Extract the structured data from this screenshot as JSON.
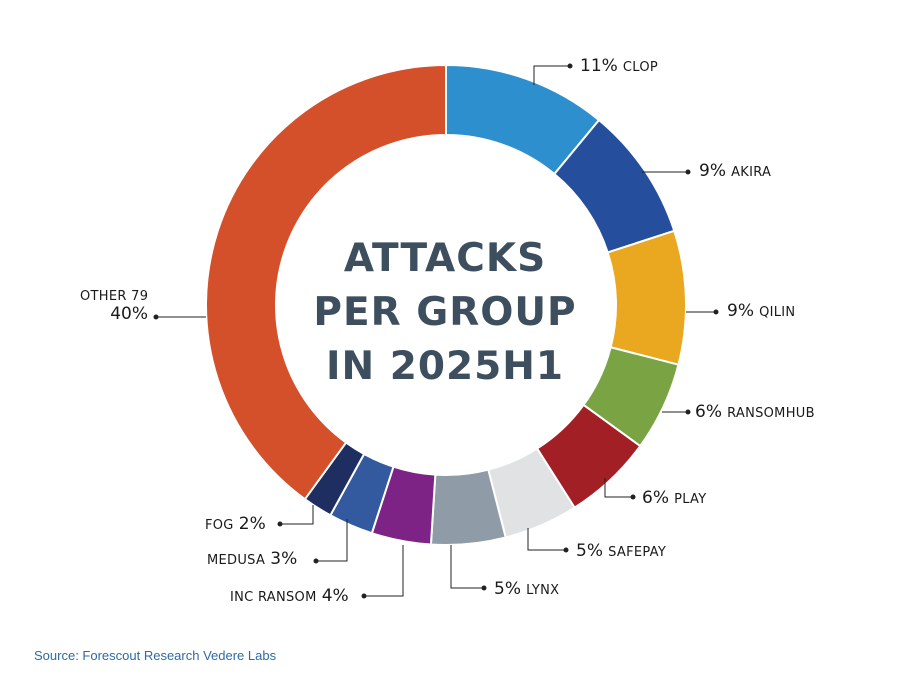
{
  "title_lines": [
    "ATTACKS",
    "PER GROUP",
    "IN 2025H1"
  ],
  "source": "Source: Forescout Research Vedere Labs",
  "chart_data": {
    "type": "pie",
    "title": "ATTACKS PER GROUP IN 2025H1",
    "slices": [
      {
        "name": "CLOP",
        "pct_label": "11%",
        "value": 11,
        "color": "#2e8fce"
      },
      {
        "name": "AKIRA",
        "pct_label": "9%",
        "value": 9,
        "color": "#254f9c"
      },
      {
        "name": "QILIN",
        "pct_label": "9%",
        "value": 9,
        "color": "#eaa820"
      },
      {
        "name": "RANSOMHUB",
        "pct_label": "6%",
        "value": 6,
        "color": "#7aa444"
      },
      {
        "name": "PLAY",
        "pct_label": "6%",
        "value": 6,
        "color": "#a11f25"
      },
      {
        "name": "SAFEPAY",
        "pct_label": "5%",
        "value": 5,
        "color": "#e0e2e4"
      },
      {
        "name": "LYNX",
        "pct_label": "5%",
        "value": 5,
        "color": "#8f9ba6"
      },
      {
        "name": "INC RANSOM",
        "pct_label": "4%",
        "value": 4,
        "color": "#7e2386"
      },
      {
        "name": "MEDUSA",
        "pct_label": "3%",
        "value": 3,
        "color": "#33599f"
      },
      {
        "name": "FOG",
        "pct_label": "2%",
        "value": 2,
        "color": "#1e2e61"
      },
      {
        "name": "OTHER 79",
        "pct_label": "40%",
        "value": 40,
        "color": "#d4502a"
      }
    ]
  }
}
